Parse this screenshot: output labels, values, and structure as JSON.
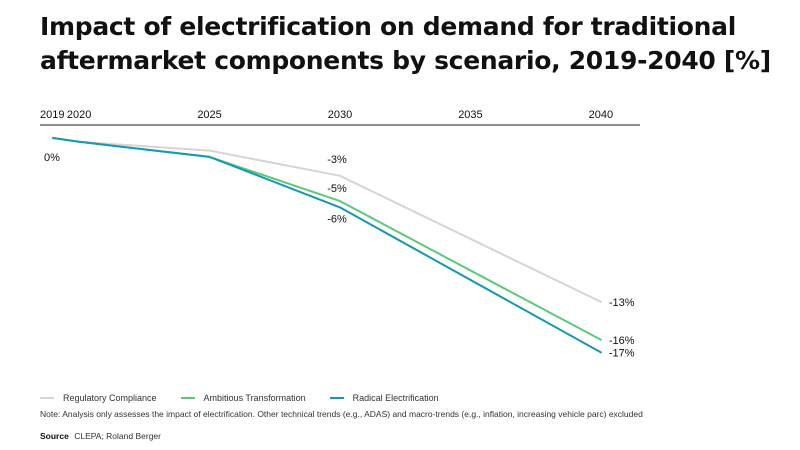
{
  "header": {
    "title_line1": "Impact of electrification on demand for traditional",
    "title_line2": "aftermarket components by scenario, 2019-2040 [%]"
  },
  "chart_data": {
    "type": "line",
    "title": "Impact of electrification on demand for traditional aftermarket components by scenario, 2019-2040 [%]",
    "xlabel": "",
    "ylabel": "",
    "x": [
      2019,
      2020,
      2025,
      2030,
      2040
    ],
    "x_tick_labels": [
      "2019",
      "2020",
      "2025",
      "2030",
      "2035",
      "2040"
    ],
    "x_ticks": [
      2019,
      2020,
      2025,
      2030,
      2035,
      2040
    ],
    "xlim": [
      2018.5,
      2041.5
    ],
    "ylim": [
      -18,
      0
    ],
    "grid": false,
    "series": [
      {
        "name": "Regulatory Compliance",
        "color": "#d3d6d6",
        "values": [
          0,
          -0.3,
          -1.0,
          -3.0,
          -13.0
        ],
        "labels": [
          {
            "index": 3,
            "text": "-3%"
          },
          {
            "index": 4,
            "text": "-13%"
          }
        ]
      },
      {
        "name": "Ambitious Transformation",
        "color": "#5cc97a",
        "values": [
          0,
          -0.3,
          -1.5,
          -5.0,
          -16.0
        ],
        "labels": [
          {
            "index": 3,
            "text": "-5%"
          },
          {
            "index": 4,
            "text": "-16%"
          }
        ]
      },
      {
        "name": "Radical Electrification",
        "color": "#1797b4",
        "values": [
          0,
          -0.3,
          -1.5,
          -5.5,
          -17.0
        ],
        "labels": [
          {
            "index": 3,
            "text": "-6%"
          },
          {
            "index": 4,
            "text": "-17%"
          }
        ]
      }
    ],
    "start_label": "0%",
    "legend_position": "bottom-left"
  },
  "note": "Note: Analysis only assesses the impact of electrification. Other technical trends (e.g., ADAS) and macro-trends (e.g., inflation, increasing vehicle parc) excluded",
  "source": {
    "label": "Source",
    "text": "CLEPA; Roland Berger"
  }
}
